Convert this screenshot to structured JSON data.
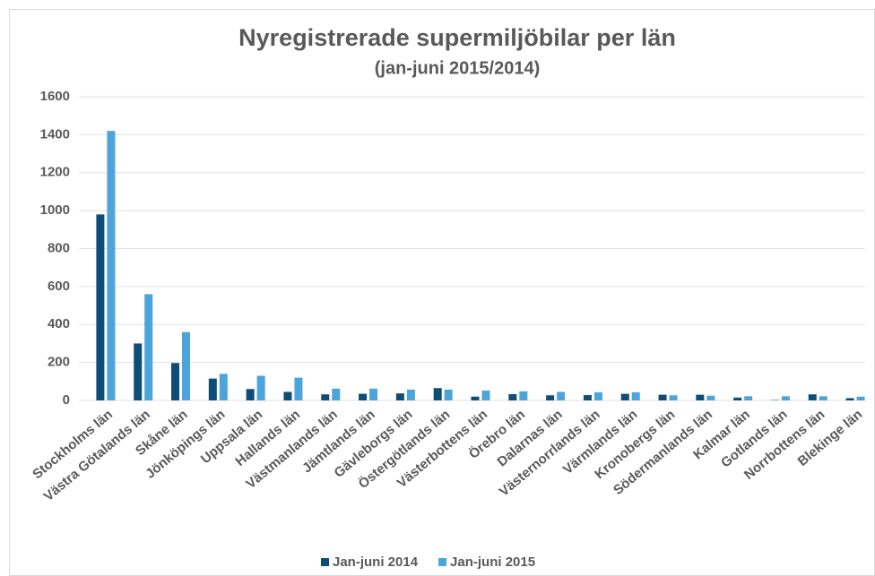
{
  "chart_data": {
    "type": "bar",
    "title": "Nyregistrerade supermiljöbilar per län",
    "subtitle": "(jan-juni 2015/2014)",
    "categories": [
      "Stockholms län",
      "Västra Götalands län",
      "Skåne län",
      "Jönköpings län",
      "Uppsala län",
      "Hallands län",
      "Västmanlands län",
      "Jämtlands län",
      "Gävleborgs län",
      "Östergötlands län",
      "Västerbottens län",
      "Örebro län",
      "Dalarnas län",
      "Västernorrlands län",
      "Värmlands län",
      "Kronobergs län",
      "Södermanlands län",
      "Kalmar län",
      "Gotlands län",
      "Norrbottens län",
      "Blekinge län"
    ],
    "series": [
      {
        "name": "Jan-juni 2014",
        "color": "#0e4d78",
        "values": [
          980,
          300,
          197,
          115,
          60,
          45,
          32,
          35,
          37,
          65,
          20,
          33,
          27,
          28,
          35,
          30,
          30,
          15,
          2,
          32,
          12
        ]
      },
      {
        "name": "Jan-juni 2015",
        "color": "#4ba4da",
        "values": [
          1420,
          560,
          360,
          140,
          130,
          120,
          62,
          62,
          57,
          57,
          52,
          48,
          45,
          43,
          43,
          27,
          25,
          22,
          22,
          22,
          20
        ]
      }
    ],
    "ylim": [
      0,
      1600
    ],
    "yticks": [
      0,
      200,
      400,
      600,
      800,
      1000,
      1200,
      1400,
      1600
    ],
    "grid": true,
    "legend": "bottom"
  }
}
